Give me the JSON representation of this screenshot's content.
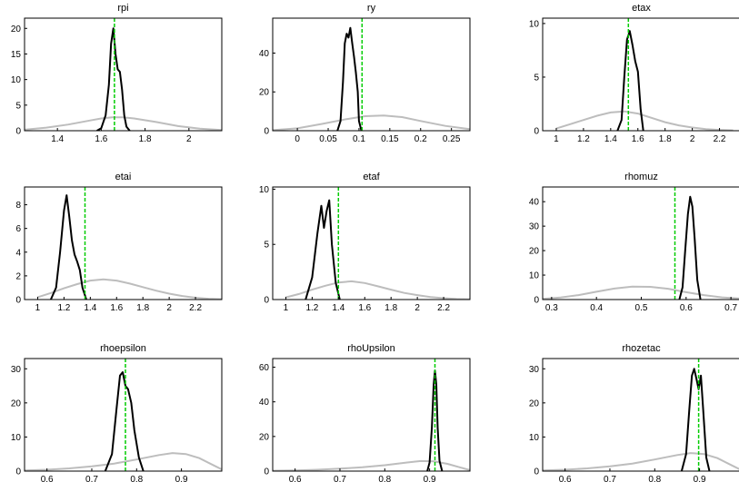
{
  "chart_data": [
    {
      "type": "line",
      "title": "rpi",
      "xlim": [
        1.25,
        2.15
      ],
      "ylim": [
        0,
        22
      ],
      "xticks": [
        1.4,
        1.6,
        1.8,
        2
      ],
      "xtick_labels": [
        "1.4",
        "1.6",
        "1.8",
        "2"
      ],
      "yticks": [
        0,
        5,
        10,
        15,
        20
      ],
      "ytick_labels": [
        "0",
        "5",
        "10",
        "15",
        "20"
      ],
      "mode": 1.66,
      "series": [
        {
          "x": [
            1.25,
            1.35,
            1.45,
            1.55,
            1.6,
            1.65,
            1.7,
            1.75,
            1.85,
            1.95,
            2.05,
            2.15
          ],
          "y": [
            0.2,
            0.6,
            1.2,
            2.0,
            2.4,
            2.6,
            2.6,
            2.4,
            1.7,
            0.9,
            0.4,
            0.15
          ]
        },
        {
          "x": [
            1.58,
            1.6,
            1.62,
            1.635,
            1.645,
            1.655,
            1.665,
            1.675,
            1.685,
            1.695,
            1.705,
            1.715,
            1.73
          ],
          "y": [
            0,
            0.5,
            3,
            9,
            17,
            20,
            15,
            12,
            11.5,
            8,
            3,
            0.8,
            0
          ]
        },
        {
          "x": [
            1.66,
            1.66
          ],
          "y": [
            0,
            22
          ]
        }
      ]
    },
    {
      "type": "line",
      "title": "ry",
      "xlim": [
        -0.04,
        0.28
      ],
      "ylim": [
        0,
        58
      ],
      "xticks": [
        0,
        0.05,
        0.1,
        0.15,
        0.2,
        0.25
      ],
      "xtick_labels": [
        "0",
        "0.05",
        "0.1",
        "0.15",
        "0.2",
        "0.25"
      ],
      "yticks": [
        0,
        20,
        40
      ],
      "ytick_labels": [
        "0",
        "20",
        "40"
      ],
      "mode": 0.105,
      "series": [
        {
          "x": [
            -0.04,
            0,
            0.04,
            0.08,
            0.11,
            0.14,
            0.17,
            0.2,
            0.24,
            0.28
          ],
          "y": [
            0.3,
            1.2,
            3.5,
            6,
            7.5,
            7.8,
            7,
            5,
            2.5,
            0.8
          ]
        },
        {
          "x": [
            0.065,
            0.07,
            0.074,
            0.077,
            0.08,
            0.083,
            0.086,
            0.089,
            0.092,
            0.095,
            0.098,
            0.1,
            0.104
          ],
          "y": [
            0,
            5,
            25,
            45,
            50,
            48,
            53,
            45,
            38,
            30,
            20,
            5,
            0
          ]
        },
        {
          "x": [
            0.105,
            0.105
          ],
          "y": [
            0,
            58
          ]
        }
      ]
    },
    {
      "type": "line",
      "title": "etax",
      "xlim": [
        0.9,
        2.35
      ],
      "ylim": [
        0,
        10.5
      ],
      "xticks": [
        1,
        1.2,
        1.4,
        1.6,
        1.8,
        2,
        2.2
      ],
      "xtick_labels": [
        "1",
        "1.2",
        "1.4",
        "1.6",
        "1.8",
        "2",
        "2.2"
      ],
      "yticks": [
        0,
        5,
        10
      ],
      "ytick_labels": [
        "0",
        "5",
        "10"
      ],
      "mode": 1.53,
      "series": [
        {
          "x": [
            1,
            1.1,
            1.2,
            1.3,
            1.4,
            1.5,
            1.6,
            1.7,
            1.8,
            1.9,
            2.0,
            2.1,
            2.2,
            2.3
          ],
          "y": [
            0.2,
            0.6,
            1.0,
            1.4,
            1.7,
            1.8,
            1.6,
            1.2,
            0.8,
            0.5,
            0.3,
            0.15,
            0.08,
            0.03
          ]
        },
        {
          "x": [
            1.45,
            1.48,
            1.5,
            1.52,
            1.54,
            1.56,
            1.58,
            1.6,
            1.62,
            1.64
          ],
          "y": [
            0,
            1,
            5,
            8.5,
            9.3,
            8,
            6.5,
            5.5,
            2,
            0
          ]
        },
        {
          "x": [
            1.53,
            1.53
          ],
          "y": [
            0,
            10.5
          ]
        }
      ]
    },
    {
      "type": "line",
      "title": "etai",
      "xlim": [
        0.9,
        2.4
      ],
      "ylim": [
        0,
        9.5
      ],
      "xticks": [
        1,
        1.2,
        1.4,
        1.6,
        1.8,
        2,
        2.2
      ],
      "xtick_labels": [
        "1",
        "1.2",
        "1.4",
        "1.6",
        "1.8",
        "2",
        "2.2"
      ],
      "yticks": [
        0,
        2,
        4,
        6,
        8
      ],
      "ytick_labels": [
        "0",
        "2",
        "4",
        "6",
        "8"
      ],
      "mode": 1.36,
      "series": [
        {
          "x": [
            1,
            1.1,
            1.2,
            1.3,
            1.4,
            1.5,
            1.6,
            1.7,
            1.8,
            1.9,
            2.0,
            2.1,
            2.2,
            2.3,
            2.4
          ],
          "y": [
            0.2,
            0.55,
            0.95,
            1.3,
            1.6,
            1.7,
            1.6,
            1.35,
            1.05,
            0.75,
            0.5,
            0.3,
            0.15,
            0.07,
            0.03
          ]
        },
        {
          "x": [
            1.1,
            1.14,
            1.17,
            1.2,
            1.22,
            1.24,
            1.26,
            1.28,
            1.3,
            1.32,
            1.34,
            1.37
          ],
          "y": [
            0,
            1,
            4,
            7.5,
            8.8,
            7,
            5,
            3.8,
            3.2,
            2.5,
            1,
            0
          ]
        },
        {
          "x": [
            1.36,
            1.36
          ],
          "y": [
            0,
            9.5
          ]
        }
      ]
    },
    {
      "type": "line",
      "title": "etaf",
      "xlim": [
        0.9,
        2.4
      ],
      "ylim": [
        0,
        10.2
      ],
      "xticks": [
        1,
        1.2,
        1.4,
        1.6,
        1.8,
        2,
        2.2
      ],
      "xtick_labels": [
        "1",
        "1.2",
        "1.4",
        "1.6",
        "1.8",
        "2",
        "2.2"
      ],
      "yticks": [
        0,
        5,
        10
      ],
      "ytick_labels": [
        "0",
        "5",
        "10"
      ],
      "mode": 1.4,
      "series": [
        {
          "x": [
            1,
            1.1,
            1.2,
            1.3,
            1.4,
            1.5,
            1.6,
            1.7,
            1.8,
            1.9,
            2.0,
            2.1,
            2.2,
            2.3,
            2.4
          ],
          "y": [
            0.2,
            0.5,
            0.9,
            1.25,
            1.55,
            1.65,
            1.5,
            1.2,
            0.9,
            0.6,
            0.4,
            0.22,
            0.12,
            0.05,
            0.02
          ]
        },
        {
          "x": [
            1.15,
            1.2,
            1.24,
            1.27,
            1.29,
            1.31,
            1.33,
            1.35,
            1.38,
            1.41
          ],
          "y": [
            0,
            2,
            6,
            8.5,
            6.5,
            8,
            9,
            5,
            1.5,
            0
          ]
        },
        {
          "x": [
            1.4,
            1.4
          ],
          "y": [
            0,
            10.2
          ]
        }
      ]
    },
    {
      "type": "line",
      "title": "rhomuz",
      "xlim": [
        0.28,
        0.72
      ],
      "ylim": [
        0,
        46
      ],
      "xticks": [
        0.3,
        0.4,
        0.5,
        0.6,
        0.7
      ],
      "xtick_labels": [
        "0.3",
        "0.4",
        "0.5",
        "0.6",
        "0.7"
      ],
      "yticks": [
        0,
        10,
        20,
        30,
        40
      ],
      "ytick_labels": [
        "0",
        "10",
        "20",
        "30",
        "40"
      ],
      "mode": 0.575,
      "series": [
        {
          "x": [
            0.28,
            0.32,
            0.36,
            0.4,
            0.44,
            0.48,
            0.52,
            0.56,
            0.6,
            0.64,
            0.68,
            0.72
          ],
          "y": [
            0.3,
            0.8,
            1.8,
            3.2,
            4.5,
            5.3,
            5.2,
            4.4,
            3.0,
            1.8,
            0.9,
            0.4
          ]
        },
        {
          "x": [
            0.585,
            0.592,
            0.598,
            0.604,
            0.609,
            0.614,
            0.619,
            0.625,
            0.632
          ],
          "y": [
            0,
            5,
            20,
            35,
            42,
            38,
            25,
            8,
            0
          ]
        },
        {
          "x": [
            0.575,
            0.575
          ],
          "y": [
            0,
            46
          ]
        }
      ]
    },
    {
      "type": "line",
      "title": "rhoepsilon",
      "xlim": [
        0.55,
        0.99
      ],
      "ylim": [
        0,
        33
      ],
      "xticks": [
        0.6,
        0.7,
        0.8,
        0.9
      ],
      "xtick_labels": [
        "0.6",
        "0.7",
        "0.8",
        "0.9"
      ],
      "yticks": [
        0,
        10,
        20,
        30
      ],
      "ytick_labels": [
        "0",
        "10",
        "20",
        "30"
      ],
      "mode": 0.775,
      "series": [
        {
          "x": [
            0.55,
            0.6,
            0.65,
            0.7,
            0.75,
            0.8,
            0.85,
            0.88,
            0.91,
            0.94,
            0.97,
            0.99
          ],
          "y": [
            0.2,
            0.4,
            0.8,
            1.4,
            2.2,
            3.4,
            4.7,
            5.3,
            5.0,
            3.8,
            1.8,
            0.5
          ]
        },
        {
          "x": [
            0.73,
            0.745,
            0.755,
            0.763,
            0.769,
            0.775,
            0.781,
            0.788,
            0.795,
            0.805,
            0.815
          ],
          "y": [
            0,
            5,
            18,
            28,
            29,
            25,
            24,
            20,
            12,
            4,
            0
          ]
        },
        {
          "x": [
            0.775,
            0.775
          ],
          "y": [
            0,
            33
          ]
        }
      ]
    },
    {
      "type": "line",
      "title": "rhoUpsilon",
      "xlim": [
        0.55,
        0.99
      ],
      "ylim": [
        0,
        65
      ],
      "xticks": [
        0.6,
        0.7,
        0.8,
        0.9
      ],
      "xtick_labels": [
        "0.6",
        "0.7",
        "0.8",
        "0.9"
      ],
      "yticks": [
        0,
        20,
        40,
        60
      ],
      "ytick_labels": [
        "0",
        "20",
        "40",
        "60"
      ],
      "mode": 0.912,
      "series": [
        {
          "x": [
            0.55,
            0.6,
            0.65,
            0.7,
            0.75,
            0.8,
            0.85,
            0.88,
            0.91,
            0.94,
            0.97,
            0.99
          ],
          "y": [
            0.2,
            0.4,
            0.8,
            1.4,
            2.2,
            3.4,
            5.0,
            5.8,
            5.6,
            4.2,
            2.0,
            0.6
          ]
        },
        {
          "x": [
            0.895,
            0.9,
            0.905,
            0.909,
            0.912,
            0.915,
            0.918,
            0.922,
            0.928
          ],
          "y": [
            0,
            5,
            25,
            50,
            58,
            50,
            25,
            6,
            0
          ]
        },
        {
          "x": [
            0.912,
            0.912
          ],
          "y": [
            0,
            65
          ]
        }
      ]
    },
    {
      "type": "line",
      "title": "rhozetac",
      "xlim": [
        0.55,
        0.99
      ],
      "ylim": [
        0,
        33
      ],
      "xticks": [
        0.6,
        0.7,
        0.8,
        0.9
      ],
      "xtick_labels": [
        "0.6",
        "0.7",
        "0.8",
        "0.9"
      ],
      "yticks": [
        0,
        10,
        20,
        30
      ],
      "ytick_labels": [
        "0",
        "10",
        "20",
        "30"
      ],
      "mode": 0.898,
      "series": [
        {
          "x": [
            0.55,
            0.6,
            0.65,
            0.7,
            0.75,
            0.8,
            0.85,
            0.88,
            0.91,
            0.94,
            0.97,
            0.99
          ],
          "y": [
            0.2,
            0.4,
            0.8,
            1.4,
            2.2,
            3.4,
            4.7,
            5.3,
            5.0,
            3.8,
            1.8,
            0.5
          ]
        },
        {
          "x": [
            0.86,
            0.87,
            0.877,
            0.883,
            0.888,
            0.893,
            0.898,
            0.903,
            0.908,
            0.915,
            0.922
          ],
          "y": [
            0,
            5,
            18,
            28,
            30,
            27,
            24,
            28,
            18,
            4,
            0
          ]
        },
        {
          "x": [
            0.898,
            0.898
          ],
          "y": [
            0,
            33
          ]
        }
      ]
    }
  ],
  "style": {
    "prior_color": "#bdbdbd",
    "posterior_color": "#000000",
    "mode_color": "#00cc00",
    "axis_color": "#000000"
  }
}
